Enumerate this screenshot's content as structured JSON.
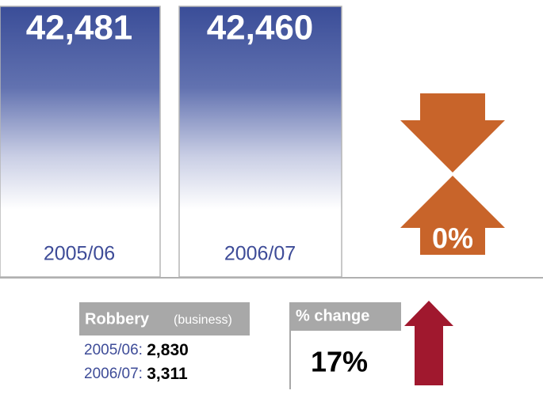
{
  "panels": [
    {
      "value": "42,481",
      "period": "2005/06"
    },
    {
      "value": "42,460",
      "period": "2006/07"
    }
  ],
  "change": "0%",
  "robbery": {
    "title": "Robbery",
    "qualifier": "(business)",
    "rows": [
      {
        "period": "2005/06:",
        "value": "2,830"
      },
      {
        "period": "2006/07:",
        "value": "3,311"
      }
    ]
  },
  "pct_change": {
    "label": "% change",
    "value": "17%"
  }
}
